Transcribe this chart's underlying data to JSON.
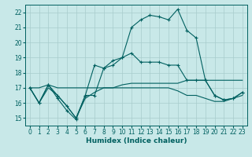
{
  "xlabel": "Humidex (Indice chaleur)",
  "xlim": [
    -0.5,
    23.5
  ],
  "ylim": [
    14.5,
    22.5
  ],
  "xticks": [
    0,
    1,
    2,
    3,
    4,
    5,
    6,
    7,
    8,
    9,
    10,
    11,
    12,
    13,
    14,
    15,
    16,
    17,
    18,
    19,
    20,
    21,
    22,
    23
  ],
  "yticks": [
    15,
    16,
    17,
    18,
    19,
    20,
    21,
    22
  ],
  "bg_color": "#c8e8e8",
  "grid_color": "#a8cccc",
  "line_color": "#006060",
  "series": [
    {
      "x": [
        0,
        1,
        2,
        3,
        4,
        5,
        6,
        7,
        8,
        9,
        10,
        11,
        12,
        13,
        14,
        15,
        16,
        17,
        18,
        19,
        20,
        21,
        22,
        23
      ],
      "y": [
        17,
        16,
        17.2,
        16.5,
        15.8,
        15.0,
        16.5,
        18.5,
        18.3,
        18.8,
        19.0,
        21.0,
        21.5,
        21.8,
        21.7,
        21.5,
        22.2,
        20.8,
        20.3,
        17.5,
        16.5,
        16.2,
        16.3,
        16.7
      ],
      "marker": "+"
    },
    {
      "x": [
        0,
        1,
        2,
        3,
        4,
        5,
        6,
        7,
        8,
        9,
        10,
        11,
        12,
        13,
        14,
        15,
        16,
        17,
        18,
        19,
        20,
        21,
        22,
        23
      ],
      "y": [
        17.0,
        17.0,
        17.2,
        17.0,
        17.0,
        17.0,
        17.0,
        17.0,
        17.0,
        17.0,
        17.2,
        17.3,
        17.3,
        17.3,
        17.3,
        17.3,
        17.3,
        17.5,
        17.5,
        17.5,
        17.5,
        17.5,
        17.5,
        17.5
      ],
      "marker": null
    },
    {
      "x": [
        0,
        1,
        2,
        3,
        4,
        5,
        6,
        7,
        8,
        9,
        10,
        11,
        12,
        13,
        14,
        15,
        16,
        17,
        18,
        19,
        20,
        21,
        22,
        23
      ],
      "y": [
        17.0,
        16.0,
        17.0,
        16.5,
        15.8,
        15.0,
        16.3,
        16.7,
        17.0,
        17.0,
        17.0,
        17.0,
        17.0,
        17.0,
        17.0,
        17.0,
        16.8,
        16.5,
        16.5,
        16.3,
        16.1,
        16.1,
        16.3,
        16.5
      ],
      "marker": null
    },
    {
      "x": [
        0,
        1,
        2,
        3,
        4,
        5,
        6,
        7,
        8,
        9,
        10,
        11,
        12,
        13,
        14,
        15,
        16,
        17,
        18,
        19,
        20,
        21,
        22,
        23
      ],
      "y": [
        17.0,
        16.0,
        17.2,
        16.3,
        15.5,
        14.9,
        16.5,
        16.5,
        18.3,
        18.5,
        19.0,
        19.3,
        18.7,
        18.7,
        18.7,
        18.5,
        18.5,
        17.5,
        17.5,
        17.5,
        16.5,
        16.2,
        16.3,
        16.7
      ],
      "marker": "+"
    }
  ]
}
